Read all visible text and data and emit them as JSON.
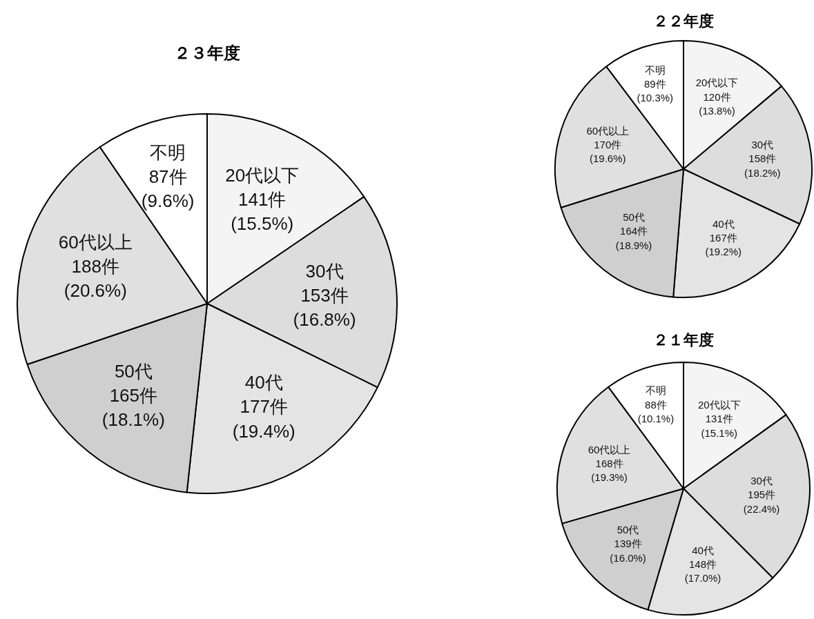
{
  "chart_data": [
    {
      "type": "pie",
      "title": "２３年度",
      "categories": [
        "20代以下",
        "30代",
        "40代",
        "50代",
        "60代以上",
        "不明"
      ],
      "values": [
        141,
        153,
        177,
        165,
        188,
        87
      ],
      "value_labels": [
        "141件\n(15.5%)",
        "153件\n(16.8%)",
        "177件\n(19.4%)",
        "165件\n(18.1%)",
        "188件\n(20.6%)",
        "87件\n(9.6%)"
      ],
      "colors": [
        "#f4f4f4",
        "#dddddd",
        "#e4e4e4",
        "#cfcfcf",
        "#e0e0e0",
        "#ffffff"
      ]
    },
    {
      "type": "pie",
      "title": "２２年度",
      "categories": [
        "20代以下",
        "30代",
        "40代",
        "50代",
        "60代以上",
        "不明"
      ],
      "values": [
        120,
        158,
        167,
        164,
        170,
        89
      ],
      "value_labels": [
        "120件\n(13.8%)",
        "158件\n(18.2%)",
        "167件\n(19.2%)",
        "164件\n(18.9%)",
        "170件\n(19.6%)",
        "89件\n(10.3%)"
      ],
      "colors": [
        "#f4f4f4",
        "#dddddd",
        "#e4e4e4",
        "#cfcfcf",
        "#e0e0e0",
        "#ffffff"
      ]
    },
    {
      "type": "pie",
      "title": "２１年度",
      "categories": [
        "20代以下",
        "30代",
        "40代",
        "50代",
        "60代以上",
        "不明"
      ],
      "values": [
        131,
        195,
        148,
        139,
        168,
        88
      ],
      "value_labels": [
        "131件\n(15.1%)",
        "195件\n(22.4%)",
        "148件\n(17.0%)",
        "139件\n(16.0%)",
        "168件\n(19.3%)",
        "88件\n(10.1%)"
      ],
      "colors": [
        "#f4f4f4",
        "#dddddd",
        "#e4e4e4",
        "#cfcfcf",
        "#e0e0e0",
        "#ffffff"
      ]
    }
  ]
}
